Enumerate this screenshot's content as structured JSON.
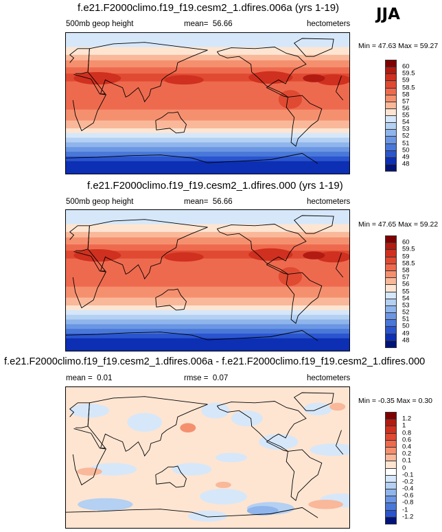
{
  "season": "JJA",
  "land_color": "#000000",
  "chart_data": [
    {
      "type": "heatmap",
      "title": "f.e21.F2000climo.f19_f19.cesm2_1.dfires.006a (yrs 1-19)",
      "variable": "500mb geop height",
      "mean_label": "mean=",
      "mean": "56.66",
      "units": "hectometers",
      "min_label": "Min =",
      "min": "47.63",
      "max_label": "Max =",
      "max": "59.27",
      "levels": [
        "60",
        "59.5",
        "59",
        "58.5",
        "58",
        "57",
        "56",
        "55",
        "54",
        "53",
        "52",
        "51",
        "50",
        "49",
        "48"
      ],
      "colors": [
        "#7f0000",
        "#b21b12",
        "#d0301f",
        "#e04a32",
        "#ee6a4e",
        "#f5906f",
        "#f9b899",
        "#fde5d2",
        "#d6e7f9",
        "#b4d0f2",
        "#8fb5ec",
        "#6b96e3",
        "#4a78d9",
        "#2a55cf",
        "#0d2fb3",
        "#00137a"
      ],
      "bands": [
        {
          "lat_top": 90,
          "lat_bot": 72,
          "level": 8
        },
        {
          "lat_top": 72,
          "lat_bot": 62,
          "level": 7
        },
        {
          "lat_top": 62,
          "lat_bot": 55,
          "level": 6
        },
        {
          "lat_top": 55,
          "lat_bot": 46,
          "level": 5
        },
        {
          "lat_top": 46,
          "lat_bot": 38,
          "level": 4
        },
        {
          "lat_top": 38,
          "lat_bot": 28,
          "level": 3
        },
        {
          "lat_top": 28,
          "lat_bot": -8,
          "level": 4
        },
        {
          "lat_top": -8,
          "lat_bot": -22,
          "level": 5
        },
        {
          "lat_top": -22,
          "lat_bot": -32,
          "level": 6
        },
        {
          "lat_top": -32,
          "lat_bot": -38,
          "level": 7
        },
        {
          "lat_top": -38,
          "lat_bot": -44,
          "level": 8
        },
        {
          "lat_top": -44,
          "lat_bot": -50,
          "level": 9
        },
        {
          "lat_top": -50,
          "lat_bot": -56,
          "level": 10
        },
        {
          "lat_top": -56,
          "lat_bot": -62,
          "level": 11
        },
        {
          "lat_top": -62,
          "lat_bot": -68,
          "level": 12
        },
        {
          "lat_top": -68,
          "lat_bot": -74,
          "level": 13
        },
        {
          "lat_top": -74,
          "lat_bot": -90,
          "level": 14
        }
      ],
      "blobs": [
        {
          "lon": -100,
          "lat": 33,
          "rx": 28,
          "ry": 8,
          "level": 2
        },
        {
          "lon": -20,
          "lat": 30,
          "rx": 22,
          "ry": 7,
          "level": 2
        },
        {
          "lon": 40,
          "lat": 32,
          "rx": 30,
          "ry": 8,
          "level": 2
        },
        {
          "lon": 150,
          "lat": 30,
          "rx": 25,
          "ry": 6,
          "level": 2
        },
        {
          "lon": -45,
          "lat": 32,
          "rx": 14,
          "ry": 5,
          "level": 1
        },
        {
          "lon": -75,
          "lat": 5,
          "rx": 15,
          "ry": 12,
          "level": 3
        }
      ]
    },
    {
      "type": "heatmap",
      "title": "f.e21.F2000climo.f19_f19.cesm2_1.dfires.000 (yrs 1-19)",
      "variable": "500mb geop height",
      "mean_label": "mean=",
      "mean": "56.66",
      "units": "hectometers",
      "min_label": "Min =",
      "min": "47.65",
      "max_label": "Max =",
      "max": "59.22",
      "levels": [
        "60",
        "59.5",
        "59",
        "58.5",
        "58",
        "57",
        "56",
        "55",
        "54",
        "53",
        "52",
        "51",
        "50",
        "49",
        "48"
      ],
      "colors": [
        "#7f0000",
        "#b21b12",
        "#d0301f",
        "#e04a32",
        "#ee6a4e",
        "#f5906f",
        "#f9b899",
        "#fde5d2",
        "#d6e7f9",
        "#b4d0f2",
        "#8fb5ec",
        "#6b96e3",
        "#4a78d9",
        "#2a55cf",
        "#0d2fb3",
        "#00137a"
      ],
      "bands": [
        {
          "lat_top": 90,
          "lat_bot": 72,
          "level": 8
        },
        {
          "lat_top": 72,
          "lat_bot": 62,
          "level": 7
        },
        {
          "lat_top": 62,
          "lat_bot": 55,
          "level": 6
        },
        {
          "lat_top": 55,
          "lat_bot": 46,
          "level": 5
        },
        {
          "lat_top": 46,
          "lat_bot": 38,
          "level": 4
        },
        {
          "lat_top": 38,
          "lat_bot": 28,
          "level": 3
        },
        {
          "lat_top": 28,
          "lat_bot": -8,
          "level": 4
        },
        {
          "lat_top": -8,
          "lat_bot": -22,
          "level": 5
        },
        {
          "lat_top": -22,
          "lat_bot": -32,
          "level": 6
        },
        {
          "lat_top": -32,
          "lat_bot": -38,
          "level": 7
        },
        {
          "lat_top": -38,
          "lat_bot": -44,
          "level": 8
        },
        {
          "lat_top": -44,
          "lat_bot": -50,
          "level": 9
        },
        {
          "lat_top": -50,
          "lat_bot": -56,
          "level": 10
        },
        {
          "lat_top": -56,
          "lat_bot": -62,
          "level": 11
        },
        {
          "lat_top": -62,
          "lat_bot": -68,
          "level": 12
        },
        {
          "lat_top": -68,
          "lat_bot": -74,
          "level": 13
        },
        {
          "lat_top": -74,
          "lat_bot": -90,
          "level": 14
        }
      ],
      "blobs": [
        {
          "lon": -100,
          "lat": 33,
          "rx": 28,
          "ry": 8,
          "level": 2
        },
        {
          "lon": -20,
          "lat": 30,
          "rx": 22,
          "ry": 7,
          "level": 2
        },
        {
          "lon": 40,
          "lat": 32,
          "rx": 30,
          "ry": 8,
          "level": 2
        },
        {
          "lon": 150,
          "lat": 30,
          "rx": 25,
          "ry": 6,
          "level": 2
        },
        {
          "lon": -45,
          "lat": 32,
          "rx": 14,
          "ry": 5,
          "level": 1
        },
        {
          "lon": -75,
          "lat": 5,
          "rx": 15,
          "ry": 12,
          "level": 3
        }
      ]
    },
    {
      "type": "heatmap",
      "title": "f.e21.F2000climo.f19_f19.cesm2_1.dfires.006a - f.e21.F2000climo.f19_f19.cesm2_1.dfires.000",
      "mean_label": "mean =",
      "mean": "0.01",
      "rmse_label": "rmse =",
      "rmse": "0.07",
      "units": "hectometers",
      "min_label": "Min =",
      "min": "-0.35",
      "max_label": "Max =",
      "max": "0.30",
      "levels": [
        "1.2",
        "1",
        "0.8",
        "0.6",
        "0.4",
        "0.2",
        "0.1",
        "0",
        "-0.1",
        "-0.2",
        "-0.4",
        "-0.6",
        "-0.8",
        "-1",
        "-1.2"
      ],
      "colors": [
        "#7f0000",
        "#b21b12",
        "#d0301f",
        "#e04a32",
        "#ee6a4e",
        "#f5906f",
        "#f9b899",
        "#fde5d2",
        "#ffffff",
        "#d6e7f9",
        "#b4d0f2",
        "#8fb5ec",
        "#6b96e3",
        "#4a78d9",
        "#2a55cf",
        "#00137a"
      ],
      "bands": [
        {
          "lat_top": 90,
          "lat_bot": -90,
          "level": 7
        }
      ],
      "blobs": [
        {
          "lon": -170,
          "lat": 60,
          "rx": 18,
          "ry": 10,
          "level": 9
        },
        {
          "lon": -130,
          "lat": 50,
          "rx": 20,
          "ry": 10,
          "level": 9
        },
        {
          "lon": -40,
          "lat": 62,
          "rx": 18,
          "ry": 8,
          "level": 9
        },
        {
          "lon": 30,
          "lat": 60,
          "rx": 25,
          "ry": 9,
          "level": 9
        },
        {
          "lon": 100,
          "lat": 45,
          "rx": 22,
          "ry": 12,
          "level": 9
        },
        {
          "lon": -90,
          "lat": 20,
          "rx": 25,
          "ry": 10,
          "level": 9
        },
        {
          "lon": -20,
          "lat": 10,
          "rx": 30,
          "ry": 8,
          "level": 9
        },
        {
          "lon": 60,
          "lat": -15,
          "rx": 30,
          "ry": 8,
          "level": 9
        },
        {
          "lon": 160,
          "lat": -15,
          "rx": 25,
          "ry": 8,
          "level": 9
        },
        {
          "lon": -150,
          "lat": 0,
          "rx": 20,
          "ry": 6,
          "level": 9
        },
        {
          "lon": -160,
          "lat": -50,
          "rx": 30,
          "ry": 10,
          "level": 9
        },
        {
          "lon": -10,
          "lat": -55,
          "rx": 28,
          "ry": 9,
          "level": 9
        },
        {
          "lon": 50,
          "lat": -60,
          "rx": 35,
          "ry": 8,
          "level": 10
        },
        {
          "lon": -100,
          "lat": -65,
          "rx": 30,
          "ry": 8,
          "level": 10
        },
        {
          "lon": -110,
          "lat": -68,
          "rx": 20,
          "ry": 6,
          "level": 11
        },
        {
          "lon": 180,
          "lat": -75,
          "rx": 25,
          "ry": 7,
          "level": 9
        },
        {
          "lon": 155,
          "lat": 38,
          "rx": 10,
          "ry": 6,
          "level": 5
        },
        {
          "lon": 30,
          "lat": -18,
          "rx": 16,
          "ry": 5,
          "level": 6
        },
        {
          "lon": -30,
          "lat": -60,
          "rx": 22,
          "ry": 6,
          "level": 6
        },
        {
          "lon": -160,
          "lat": -35,
          "rx": 10,
          "ry": 4,
          "level": 6
        },
        {
          "lon": -15,
          "lat": 65,
          "rx": 10,
          "ry": 5,
          "level": 6
        }
      ]
    }
  ]
}
